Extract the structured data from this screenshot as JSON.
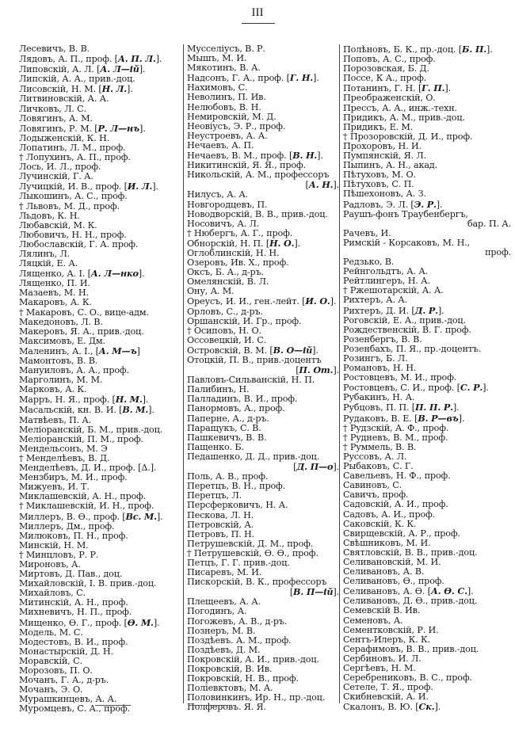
{
  "page_number": "III",
  "columns": [
    [
      {
        "t": "Лесевичъ, В. В."
      },
      {
        "t": "Лядовъ, А. П., проф. [",
        "a": "А. П. Л.",
        "p": "]."
      },
      {
        "t": "Липовскій, А. Л. [",
        "a": "А. Л—ій",
        "p": "]."
      },
      {
        "t": "Липскій, А. А., прив.-доц."
      },
      {
        "t": "Лисовскій, Н. М. [",
        "a": "Н. Л.",
        "p": "]."
      },
      {
        "t": "Литвиновскій, А. А."
      },
      {
        "t": "Личковъ, Л. С."
      },
      {
        "t": "Ловягинъ, А. М."
      },
      {
        "t": "Ловягинъ, Р. М. [",
        "a": "Р. Л—нъ",
        "p": "]."
      },
      {
        "t": "Лодыженскій, К. Н."
      },
      {
        "t": "Лопатинъ, Л. М., проф."
      },
      {
        "t": "† Лопухинъ, А. П., проф."
      },
      {
        "t": "Лось, И. Л., проф."
      },
      {
        "t": "Лучинскій, Г. А."
      },
      {
        "t": "Лучицкій, И. В., проф. [",
        "a": "И. Л.",
        "p": "]."
      },
      {
        "t": "Лыкошинъ, А. С., проф."
      },
      {
        "t": "† Львовъ, М. Д., проф."
      },
      {
        "t": "Льдовъ, К. Н."
      },
      {
        "t": "Любавскій, М. К."
      },
      {
        "t": "Любовичъ, Н. Н., проф."
      },
      {
        "t": "Любославскій, Г. А. проф."
      },
      {
        "t": "Лялинъ, Л."
      },
      {
        "t": "Ляцкій, Е. А."
      },
      {
        "t": "Лященко, А. I. [",
        "a": "А. Л—нко",
        "p": "]."
      },
      {
        "t": "Лященко, П. И."
      },
      {
        "t": "Мазаевъ, М. Н."
      },
      {
        "t": "Макаровъ, А. К."
      },
      {
        "t": "† Макаровъ, С. О., вице-адм."
      },
      {
        "t": "Македоновъ, Л. В."
      },
      {
        "t": "Макеровъ, Я. А., прив.-доц."
      },
      {
        "t": "Максимовъ, Е. Дм."
      },
      {
        "t": "Маленинъ, А. I., [",
        "a": "А. М—ъ",
        "p": "]"
      },
      {
        "t": "Мамонтовъ, В. В."
      },
      {
        "t": "Мануиловъ, А. А., проф."
      },
      {
        "t": "Марголинъ, М. М."
      },
      {
        "t": "Марковъ, А. К."
      },
      {
        "t": "Марръ, Н. Я., проф. [",
        "a": "Н. М.",
        "p": "]."
      },
      {
        "t": "Масальскій, кн. В. И. [",
        "a": "В. М.",
        "p": "]."
      },
      {
        "t": "Матвѣевъ, П. А."
      },
      {
        "t": "Меліоранскій, Б. М., прив.-доц."
      },
      {
        "t": "Меліоранскій, П. М., проф."
      },
      {
        "t": "Мендельсонъ, М. Э"
      },
      {
        "t": "† Менделѣевъ, В. Д."
      },
      {
        "t": "Менделѣевъ, Д. И., проф. [Δ.]."
      },
      {
        "t": "Мензбиръ, М. И., проф."
      },
      {
        "t": "Мижуевъ, И. Т."
      },
      {
        "t": "Миклашевскій, А. Н., проф."
      },
      {
        "t": "† Миклашевскій, И. Н., проф."
      },
      {
        "t": "Миллеръ, В. Ѳ., проф. [",
        "a": "Вс. М.",
        "p": "]."
      },
      {
        "t": "Миллеръ, Дм., проф."
      },
      {
        "t": "Милюковъ, П. Н., проф."
      },
      {
        "t": "Минскій, Н. М."
      },
      {
        "t": "† Минцловъ, Р. Р."
      },
      {
        "t": "Мироновъ, А."
      },
      {
        "t": "Миртовъ, Д. Пав., доц."
      },
      {
        "t": "Михайловскій, I. В. прив.-доц."
      },
      {
        "t": "Михайловъ, С."
      },
      {
        "t": "Митинскій, А. Н., проф."
      },
      {
        "t": "Михневичъ, Н. П., проф."
      },
      {
        "t": "Мищенко, Ѳ. Г., проф. [",
        "a": "Ѳ. М.",
        "p": "]."
      },
      {
        "t": "Модель, М. С."
      },
      {
        "t": "Модестовъ, В. И., проф."
      },
      {
        "t": "Монастырскій, Д. Н."
      },
      {
        "t": "Моравскій, С."
      },
      {
        "t": "Морозовъ, П. О."
      },
      {
        "t": "Мочанъ, Г. А., д-ръ."
      },
      {
        "t": "Мочанъ, Э. О."
      },
      {
        "t": "Мурашкинцевъ, А. А."
      },
      {
        "t": "Муромцевъ, С. А., проф."
      }
    ],
    [
      {
        "t": "Мусселіусъ, В. Р."
      },
      {
        "t": "Мышъ, М. И."
      },
      {
        "t": "Мякотинъ, В. А."
      },
      {
        "t": "Надсонъ, Г. А., проф. [",
        "a": "Г. Н.",
        "p": "]."
      },
      {
        "t": "Нахимовъ, С."
      },
      {
        "t": "Неволинъ, П. Ив."
      },
      {
        "t": "Нелюбовъ, В. Н."
      },
      {
        "t": "Немировскій, М. Д."
      },
      {
        "t": "Неовіусъ, Э. Р., проф."
      },
      {
        "t": "Неустроевъ, А. А."
      },
      {
        "t": "Нечаевъ, А. П."
      },
      {
        "t": "Нечаевъ, В. М., проф. [",
        "a": "В. Н.",
        "p": "]."
      },
      {
        "t": "Никитинскій, Я. Я., проф."
      },
      {
        "t": "Никольскій, А. М., профессоръ",
        "c": "[",
        "ca": "А. Н.",
        "cp": "]."
      },
      {
        "t": "Нилусъ, А. А."
      },
      {
        "t": "Новгородцевъ, П."
      },
      {
        "t": "Новодворскій, В. В., прив.-доц."
      },
      {
        "t": "Носовичъ, А. Л."
      },
      {
        "t": "† Нюбергъ, А. Г., проф."
      },
      {
        "t": "Обнорскій, Н. П. [",
        "a": "Н. О.",
        "p": "]."
      },
      {
        "t": "Оглоблинскій, Н. Н."
      },
      {
        "t": "Озеровъ, Ив. Х., проф."
      },
      {
        "t": "Оксъ, Б. А., д-ръ."
      },
      {
        "t": "Омелянскій, В. Л."
      },
      {
        "t": "Ону, А. М."
      },
      {
        "t": "Ореусъ, И. И., ген.-лейт. [",
        "a": "И. О.",
        "p": "]."
      },
      {
        "t": "Орловъ, С., д-ръ."
      },
      {
        "t": "Оршанскій, И. Гр., проф."
      },
      {
        "t": "† Осиповъ, Н. О."
      },
      {
        "t": "Оссовецкій, И. С."
      },
      {
        "t": "Островскій, В. М. [",
        "a": "В. О—ій",
        "p": "]."
      },
      {
        "t": "Отоцкій, П. В., прив.-доцентъ",
        "c": "[",
        "ca": "П. От.",
        "cp": "]."
      },
      {
        "t": "Павловъ-Сильванскій, Н. П."
      },
      {
        "t": "Палибинъ, Н."
      },
      {
        "t": "Палладинъ, В. И., проф."
      },
      {
        "t": "Панормовъ, А., проф."
      },
      {
        "t": "Паперне, А., д-ръ."
      },
      {
        "t": "Паращукъ, С. В."
      },
      {
        "t": "Пашкевичъ, В. В."
      },
      {
        "t": "Пащенко. Б."
      },
      {
        "t": "Педашенко, Д. Д., прив.-доц.",
        "c": "[",
        "ca": "Д. П—о",
        "cp": "]."
      },
      {
        "t": "Поль, А. В., проф."
      },
      {
        "t": "Перетцъ, В. Н., проф."
      },
      {
        "t": "Перетцъ, Л."
      },
      {
        "t": "Персферковичъ, Н. А."
      },
      {
        "t": "Пескова, Л. Н."
      },
      {
        "t": "Петровскій, А."
      },
      {
        "t": "Петровъ, П. Н."
      },
      {
        "t": "Петрушевскій, Д. М., проф."
      },
      {
        "t": "† Петрушевскій, Ѳ. Ѳ., проф."
      },
      {
        "t": "Петцъ, Г. Г. прив.-доц."
      },
      {
        "t": "Писаревъ, М. И."
      },
      {
        "t": "Пискорскій, В. К., профессоръ",
        "c": "[",
        "ca": "В. П—ій",
        "cp": "]."
      },
      {
        "t": "Плещеевъ, А. А."
      },
      {
        "t": "Погодинъ, А."
      },
      {
        "t": "Погожевъ, А. В., д-ръ."
      },
      {
        "t": "Познеръ, М. В."
      },
      {
        "t": "Поздѣевъ. А. М., проф."
      },
      {
        "t": "Поздѣевъ, Д. М."
      },
      {
        "t": "Покровскій, А. И., прив.-доц."
      },
      {
        "t": "Покровскій, В. Ив."
      },
      {
        "t": "Покровскій, Н. В., проф."
      },
      {
        "t": "Поліевктовъ, М. А."
      },
      {
        "t": "Половинкинъ, Ир. Н., пр.-доц."
      },
      {
        "t": "Полферовъ. Я. Я."
      }
    ],
    [
      {
        "t": "Полѣновъ, Б. К., пр.-доц. [",
        "a": "Б. П.",
        "p": "]."
      },
      {
        "t": "Поповъ, А. С., проф."
      },
      {
        "t": "Порозовская, Б. Д."
      },
      {
        "t": "Поссе, К А., проф."
      },
      {
        "t": "Потанинъ, Г. Н. [",
        "a": "Г. П.",
        "p": "]."
      },
      {
        "t": "Преображенскій, О."
      },
      {
        "t": "Прессъ, А. А., инж.-техн."
      },
      {
        "t": "Придикъ, А. М., прив.-доц."
      },
      {
        "t": "Придикъ, Е. М."
      },
      {
        "t": "† Прозоровскій, Д. И., проф."
      },
      {
        "t": "Прохоровъ, Н. И."
      },
      {
        "t": "Пумпянскій, Я. Л."
      },
      {
        "t": "Пыпинъ, А. Н., акад."
      },
      {
        "t": "Пѣтуховъ, М. О."
      },
      {
        "t": "Пѣтуховъ, С. П."
      },
      {
        "t": "Пѣшехоновъ, А. З."
      },
      {
        "t": "Радловъ, Э. Л. [",
        "a": "Э. Р.",
        "p": "]."
      },
      {
        "t": "Раушъ-фонъ Траубенбергъ,",
        "c": "бар. П. А."
      },
      {
        "t": "Рачевъ, И."
      },
      {
        "t": "Римскій - Корсаковъ, М. Н.,",
        "c": "проф."
      },
      {
        "t": "Редзько, В."
      },
      {
        "t": "Рейнгольдтъ, А. А."
      },
      {
        "t": "Рейтлингеръ, Н. А."
      },
      {
        "t": "† Ржешотарскій, А. А."
      },
      {
        "t": "Рихтеръ, А. А."
      },
      {
        "t": "Рихтеръ, Д. И. [",
        "a": "Д. Р.",
        "p": "]."
      },
      {
        "t": "Роговскій, Е. А., прив.-доц."
      },
      {
        "t": "Рождественскій, В. Г. проф."
      },
      {
        "t": "Розенбергъ, В. В."
      },
      {
        "t": "Розенбахъ, П. Я., пр.-доцентъ."
      },
      {
        "t": "Розингъ, Б. Л."
      },
      {
        "t": "Романовъ, Н. Н."
      },
      {
        "t": "Ростовцевъ, М. И., проф."
      },
      {
        "t": "Ростовцевъ, С. И., проф. [",
        "a": "С. Р.",
        "p": "]."
      },
      {
        "t": "Рубакинъ, Н. А."
      },
      {
        "t": "Рубцовъ, П. П. [",
        "a": "П. П. Р.",
        "p": "]."
      },
      {
        "t": "Рудаковъ, В. Е. [",
        "a": "В. Р—въ",
        "p": "]."
      },
      {
        "t": "† Рудзскій, А. Ф., проф."
      },
      {
        "t": "† Рудневъ, В. М., проф."
      },
      {
        "t": "† Руммель, В. В."
      },
      {
        "t": "Руссовъ, А. Л."
      },
      {
        "t": "Рыбаковъ, С. Г."
      },
      {
        "t": "Савельевъ, Н. Ф., проф."
      },
      {
        "t": "Савиновъ, С."
      },
      {
        "t": "Савичъ, проф."
      },
      {
        "t": "Садовскій, А. И., проф."
      },
      {
        "t": "Садовъ, А. И., проф."
      },
      {
        "t": "Саковскій, К. К."
      },
      {
        "t": "Свирщевскій, А. Р., проф."
      },
      {
        "t": "Свѣшниковъ, М. И."
      },
      {
        "t": "Святловскій, В. В., прив.-доц."
      },
      {
        "t": "Селивановскій, М. И."
      },
      {
        "t": "Селивановъ, А. В."
      },
      {
        "t": "Селивановъ, Ѳ., проф."
      },
      {
        "t": "Селивановъ, А. Ѳ. [",
        "a": "А. Ѳ. С.",
        "p": "]."
      },
      {
        "t": "Селивановъ, Д. Ѳ., прив.-доц."
      },
      {
        "t": "Семевскій В. Ив."
      },
      {
        "t": "Семеновъ, А."
      },
      {
        "t": "Сементковскій, Р. И."
      },
      {
        "t": "Сентъ-Илеръ, К. К."
      },
      {
        "t": "Серафимовъ, В. В., прив.-доц."
      },
      {
        "t": "Сербиновъ, И. Л."
      },
      {
        "t": "Сергѣевъ, Н. М."
      },
      {
        "t": "Серебрениковъ, В. С., проф."
      },
      {
        "t": "Сетеле, Т. Я., проф."
      },
      {
        "t": "Скибневскій, А. И."
      },
      {
        "t": "Скалонъ, В. Ю. [",
        "a": "Ск.",
        "p": "]."
      }
    ]
  ]
}
